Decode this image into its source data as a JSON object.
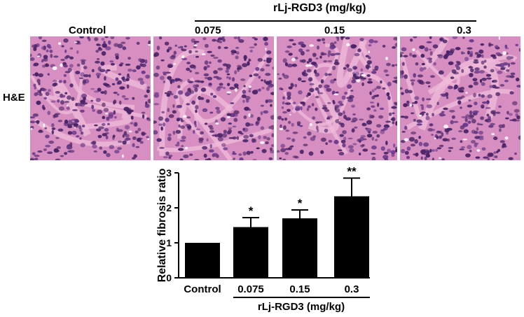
{
  "figure": {
    "group_header": "rLj-RGD3 (mg/kg)",
    "row_label": "H&E",
    "panel_labels": [
      "Control",
      "0.075",
      "0.15",
      "0.3"
    ]
  },
  "chart_data": {
    "type": "bar",
    "categories": [
      "Control",
      "0.075",
      "0.15",
      "0.3"
    ],
    "values": [
      1.0,
      1.45,
      1.7,
      2.33
    ],
    "errors": [
      0,
      0.27,
      0.24,
      0.52
    ],
    "significance": [
      "",
      "*",
      "*",
      "**"
    ],
    "ylabel": "Relative fibrosis ratio",
    "xlabel": "rLj-RGD3 (mg/kg)",
    "ylim": [
      0,
      3
    ],
    "yticks": [
      0,
      1,
      2,
      3
    ],
    "bar_color": "#000000"
  },
  "colors": {
    "tissue_base": "#d68fc0",
    "nucleus": "#4a2468",
    "stroma": "#efbcd9"
  }
}
